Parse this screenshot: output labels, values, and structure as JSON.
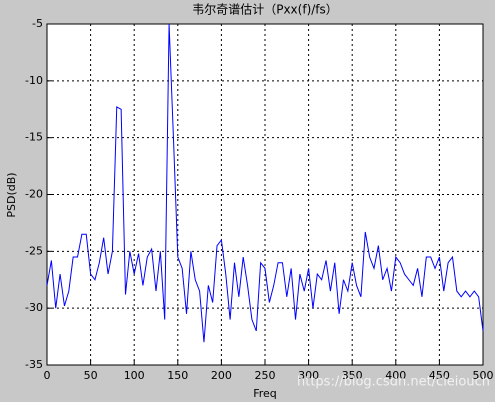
{
  "chart_data": {
    "type": "line",
    "title": "韦尔奇谱估计（Pxx(f)/fs）",
    "x_label": "Freq",
    "y_label": "PSD(dB)",
    "x": [
      0,
      5,
      10,
      15,
      20,
      25,
      30,
      35,
      40,
      45,
      50,
      55,
      60,
      65,
      70,
      75,
      80,
      85,
      90,
      95,
      100,
      105,
      110,
      115,
      120,
      125,
      130,
      135,
      140,
      145,
      150,
      155,
      160,
      165,
      170,
      175,
      180,
      185,
      190,
      195,
      200,
      205,
      210,
      215,
      220,
      225,
      230,
      235,
      240,
      245,
      250,
      255,
      260,
      265,
      270,
      275,
      280,
      285,
      290,
      295,
      300,
      305,
      310,
      315,
      320,
      325,
      330,
      335,
      340,
      345,
      350,
      355,
      360,
      365,
      370,
      375,
      380,
      385,
      390,
      395,
      400,
      405,
      410,
      415,
      420,
      425,
      430,
      435,
      440,
      445,
      450,
      455,
      460,
      465,
      470,
      475,
      480,
      485,
      490,
      495,
      500
    ],
    "series": [
      {
        "color": "#0000ff",
        "values": [
          -28,
          -25.8,
          -30,
          -27,
          -29.8,
          -28.5,
          -25.5,
          -25.5,
          -23.5,
          -23.5,
          -27,
          -27.5,
          -26,
          -23.8,
          -27,
          -25,
          -12.3,
          -12.5,
          -28.8,
          -25,
          -27,
          -25.2,
          -28,
          -25.5,
          -24.8,
          -28.5,
          -25,
          -31,
          -5,
          -15,
          -25.5,
          -26.5,
          -30.5,
          -25,
          -27.5,
          -28.5,
          -33,
          -28,
          -29.5,
          -24.5,
          -24,
          -27,
          -31,
          -26,
          -29,
          -25.5,
          -28,
          -31,
          -32,
          -26,
          -26.5,
          -29.5,
          -28,
          -26,
          -26,
          -29,
          -26.5,
          -31,
          -27,
          -28.5,
          -26.5,
          -30,
          -27,
          -27.5,
          -25.8,
          -28.5,
          -26,
          -30.5,
          -27.5,
          -28.5,
          -26,
          -28,
          -29,
          -23.3,
          -25.5,
          -26.5,
          -24.5,
          -27.5,
          -26.5,
          -28.5,
          -25.5,
          -26,
          -27,
          -27.5,
          -28,
          -26.5,
          -29,
          -25.5,
          -25.5,
          -26.5,
          -25.5,
          -28.5,
          -26,
          -25.5,
          -28.5,
          -29,
          -28.5,
          -29,
          -28.5,
          -29,
          -32
        ]
      }
    ],
    "xlim": [
      0,
      500
    ],
    "xticks": [
      0,
      50,
      100,
      150,
      200,
      250,
      300,
      350,
      400,
      450,
      500
    ],
    "ylim": [
      -35,
      -5
    ],
    "yticks": [
      -35,
      -30,
      -25,
      -20,
      -15,
      -10,
      -5
    ],
    "grid": true
  },
  "watermark": "https://blog.csdn.net/cleiouch"
}
